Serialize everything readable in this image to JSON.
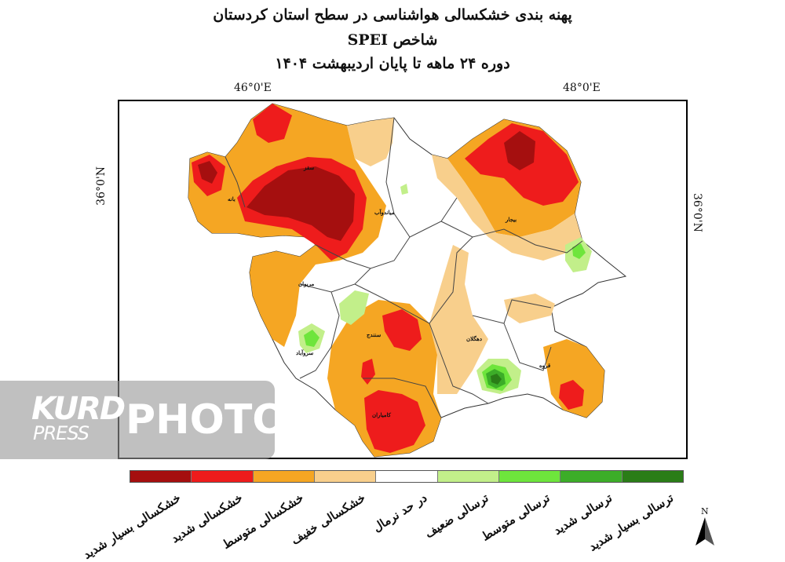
{
  "title": {
    "line1": "پهنه بندی خشکسالی هواشناسی در سطح استان کردستان",
    "line2": "شاخص SPEI",
    "line3": "دوره  ۲۴ ماهه تا پایان  اردیبهشت ۱۴۰۴"
  },
  "coords": {
    "lon_left": "46°0'E",
    "lon_right": "48°0'E",
    "lat_left": "36°0'N",
    "lat_right": "36°0'N"
  },
  "cities": [
    {
      "name": "بانه"
    },
    {
      "name": "سقز"
    },
    {
      "name": "میاندوآب"
    },
    {
      "name": "بیجار"
    },
    {
      "name": "مریوان"
    },
    {
      "name": "سنندج"
    },
    {
      "name": "دهگلان"
    },
    {
      "name": "سروآباد"
    },
    {
      "name": "قروه"
    },
    {
      "name": "کامیاران"
    }
  ],
  "legend": [
    {
      "label": "خشکسالی بسیار شدید",
      "color": "#a50f0f"
    },
    {
      "label": "خشکسالی شدید",
      "color": "#ee1c1c"
    },
    {
      "label": "خشکسالی متوسط",
      "color": "#f5a623"
    },
    {
      "label": "خشکسالی خفیف",
      "color": "#f8cf8c"
    },
    {
      "label": "در حد نرمال",
      "color": "#ffffff"
    },
    {
      "label": "ترسالی ضعیف",
      "color": "#c2ef8a"
    },
    {
      "label": "ترسالی متوسط",
      "color": "#6ee53c"
    },
    {
      "label": "ترسالی شدید",
      "color": "#3cad28"
    },
    {
      "label": "ترسالی بسیار شدید",
      "color": "#2a7d17"
    }
  ],
  "north_label": "N",
  "watermark": {
    "brand_top": "KURD",
    "brand_bottom": "PRESS",
    "photo": "PHOTO"
  }
}
